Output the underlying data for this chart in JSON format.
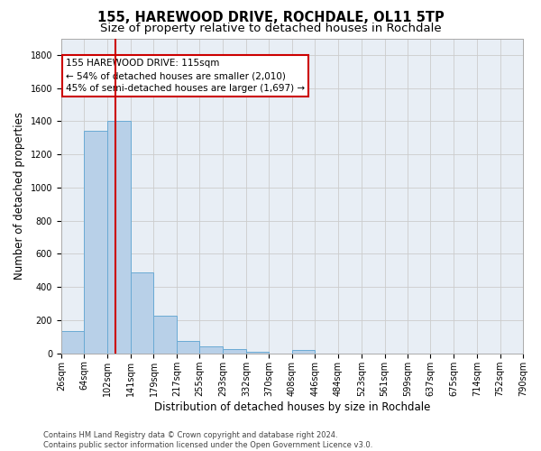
{
  "title": "155, HAREWOOD DRIVE, ROCHDALE, OL11 5TP",
  "subtitle": "Size of property relative to detached houses in Rochdale",
  "xlabel": "Distribution of detached houses by size in Rochdale",
  "ylabel": "Number of detached properties",
  "footer_line1": "Contains HM Land Registry data © Crown copyright and database right 2024.",
  "footer_line2": "Contains public sector information licensed under the Open Government Licence v3.0.",
  "annotation_line1": "155 HAREWOOD DRIVE: 115sqm",
  "annotation_line2": "← 54% of detached houses are smaller (2,010)",
  "annotation_line3": "45% of semi-detached houses are larger (1,697) →",
  "bar_edges": [
    26,
    64,
    102,
    141,
    179,
    217,
    255,
    293,
    332,
    370,
    408,
    446,
    484,
    523,
    561,
    599,
    637,
    675,
    714,
    752,
    790
  ],
  "bar_heights": [
    137,
    1340,
    1400,
    490,
    225,
    75,
    42,
    27,
    12,
    0,
    20,
    0,
    0,
    0,
    0,
    0,
    0,
    0,
    0,
    0
  ],
  "bar_color": "#b8d0e8",
  "bar_edgecolor": "#6aaad4",
  "vline_x": 115,
  "vline_color": "#cc0000",
  "grid_color": "#cccccc",
  "bg_color": "#e8eef5",
  "ylim": [
    0,
    1900
  ],
  "yticks": [
    0,
    200,
    400,
    600,
    800,
    1000,
    1200,
    1400,
    1600,
    1800
  ],
  "title_fontsize": 10.5,
  "subtitle_fontsize": 9.5,
  "label_fontsize": 8.5,
  "tick_fontsize": 7,
  "footer_fontsize": 6
}
